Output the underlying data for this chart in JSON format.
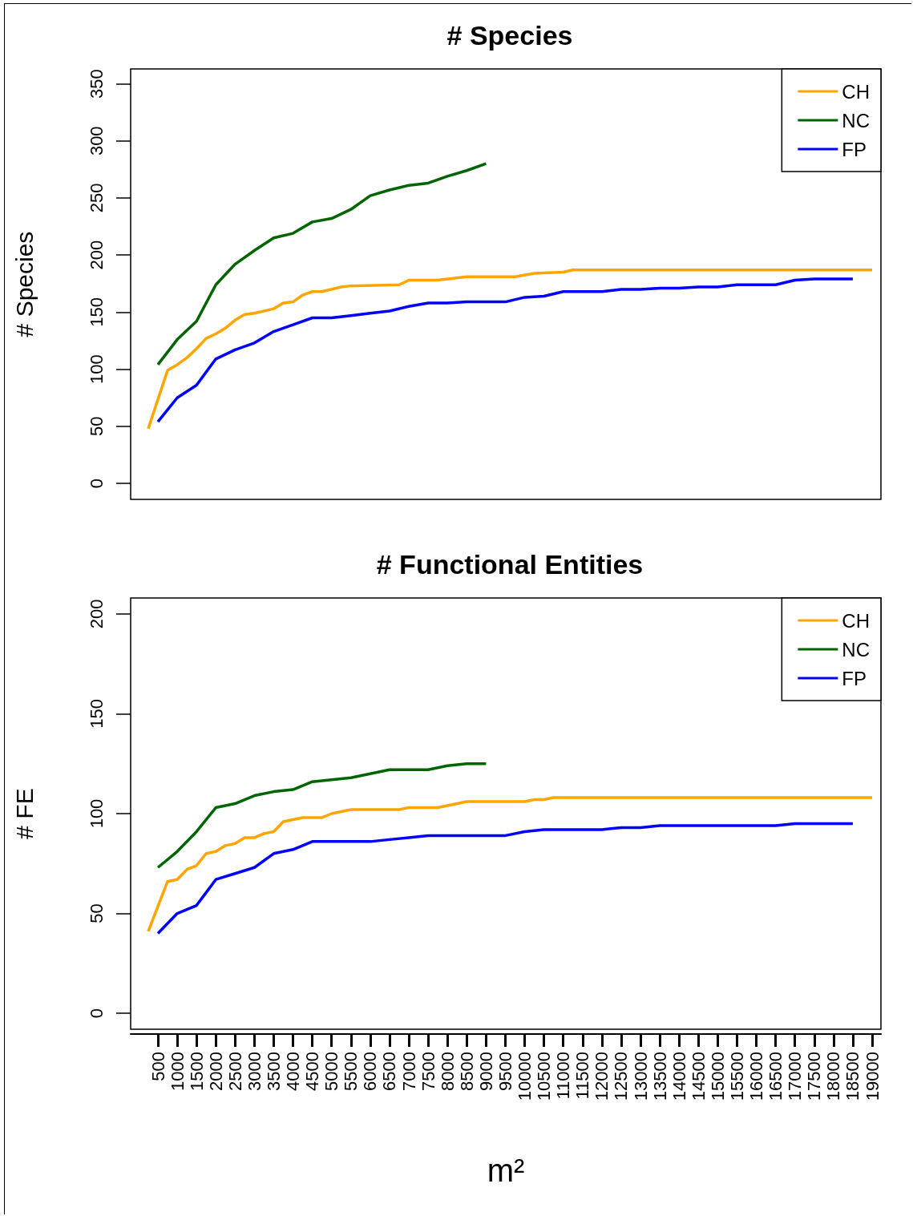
{
  "chart_data": [
    {
      "type": "line",
      "title": "# Species",
      "ylabel": "# Species",
      "xlim": [
        -206,
        19228
      ],
      "ylim": [
        -14,
        363
      ],
      "yticks": [
        0,
        50,
        100,
        150,
        200,
        250,
        300,
        350
      ],
      "tick_labels": "y",
      "legend": "top right",
      "series": [
        {
          "name": "CH",
          "color": "#ffa500",
          "x": [
            250,
            750,
            1000,
            1250,
            1500,
            1750,
            2000,
            2250,
            2500,
            2750,
            3000,
            3500,
            3750,
            4000,
            4250,
            4500,
            4750,
            5250,
            5500,
            6750,
            7000,
            7750,
            8500,
            9750,
            10250,
            11000,
            11250,
            19000
          ],
          "values": [
            48,
            99,
            104,
            110,
            118,
            127,
            131,
            136,
            143,
            148,
            149,
            153,
            158,
            159,
            165,
            168,
            168,
            172,
            173,
            174,
            178,
            178,
            181,
            181,
            184,
            185,
            187,
            187
          ]
        },
        {
          "name": "NC",
          "color": "#006400",
          "x": [
            500,
            1000,
            1500,
            2000,
            2500,
            3000,
            3500,
            4000,
            4500,
            5000,
            5500,
            6000,
            6500,
            7000,
            7500,
            8000,
            8500,
            9000
          ],
          "values": [
            104,
            126,
            142,
            174,
            192,
            204,
            215,
            219,
            229,
            232,
            240,
            252,
            257,
            261,
            263,
            269,
            274,
            280
          ]
        },
        {
          "name": "FP",
          "color": "#0000ff",
          "x": [
            500,
            1000,
            1500,
            2000,
            2500,
            3000,
            3500,
            4000,
            4500,
            5000,
            5500,
            6000,
            6500,
            7000,
            7500,
            8000,
            8500,
            9000,
            9500,
            10000,
            10500,
            11000,
            11500,
            12000,
            12500,
            13000,
            13500,
            14000,
            14500,
            15000,
            15500,
            16000,
            16500,
            17000,
            17500,
            18000,
            18500
          ],
          "values": [
            54,
            75,
            86,
            109,
            117,
            123,
            133,
            139,
            145,
            145,
            147,
            149,
            151,
            155,
            158,
            158,
            159,
            159,
            159,
            163,
            164,
            168,
            168,
            168,
            170,
            170,
            171,
            171,
            172,
            172,
            174,
            174,
            174,
            178,
            179,
            179,
            179
          ]
        }
      ]
    },
    {
      "type": "line",
      "title": "# Functional Entities",
      "ylabel": "# FE",
      "xlabel": "m²",
      "xlim": [
        -206,
        19228
      ],
      "ylim": [
        -8,
        208
      ],
      "yticks": [
        0,
        50,
        100,
        150,
        200
      ],
      "xticks": [
        500,
        1000,
        1500,
        2000,
        2500,
        3000,
        3500,
        4000,
        4500,
        5000,
        5500,
        6000,
        6500,
        7000,
        7500,
        8000,
        8500,
        9000,
        9500,
        10000,
        10500,
        11000,
        11500,
        12000,
        12500,
        13000,
        13500,
        14000,
        14500,
        15000,
        15500,
        16000,
        16500,
        17000,
        17500,
        18000,
        18500,
        19000
      ],
      "legend": "top right",
      "series": [
        {
          "name": "CH",
          "color": "#ffa500",
          "x": [
            250,
            750,
            1000,
            1250,
            1500,
            1750,
            2000,
            2250,
            2500,
            2750,
            3000,
            3250,
            3500,
            3750,
            4000,
            4250,
            4750,
            5000,
            5500,
            6750,
            7000,
            7750,
            8500,
            10000,
            10250,
            10500,
            10750,
            19000
          ],
          "values": [
            41,
            66,
            67,
            72,
            74,
            80,
            81,
            84,
            85,
            88,
            88,
            90,
            91,
            96,
            97,
            98,
            98,
            100,
            102,
            102,
            103,
            103,
            106,
            106,
            107,
            107,
            108,
            108
          ]
        },
        {
          "name": "NC",
          "color": "#006400",
          "x": [
            500,
            1000,
            1500,
            2000,
            2500,
            3000,
            3500,
            4000,
            4500,
            5000,
            5500,
            6000,
            6500,
            7000,
            7500,
            8000,
            8500,
            9000
          ],
          "values": [
            73,
            81,
            91,
            103,
            105,
            109,
            111,
            112,
            116,
            117,
            118,
            120,
            122,
            122,
            122,
            124,
            125,
            125
          ]
        },
        {
          "name": "FP",
          "color": "#0000ff",
          "x": [
            500,
            1000,
            1500,
            2000,
            2500,
            3000,
            3500,
            4000,
            4500,
            5000,
            5500,
            6000,
            6500,
            7000,
            7500,
            8000,
            8500,
            9000,
            9500,
            10000,
            10500,
            11000,
            11500,
            12000,
            12500,
            13000,
            13500,
            14000,
            14500,
            15000,
            15500,
            16000,
            16500,
            17000,
            17500,
            18000,
            18500
          ],
          "values": [
            40,
            50,
            54,
            67,
            70,
            73,
            80,
            82,
            86,
            86,
            86,
            86,
            87,
            88,
            89,
            89,
            89,
            89,
            89,
            91,
            92,
            92,
            92,
            92,
            93,
            93,
            94,
            94,
            94,
            94,
            94,
            94,
            94,
            95,
            95,
            95,
            95
          ]
        }
      ]
    }
  ]
}
